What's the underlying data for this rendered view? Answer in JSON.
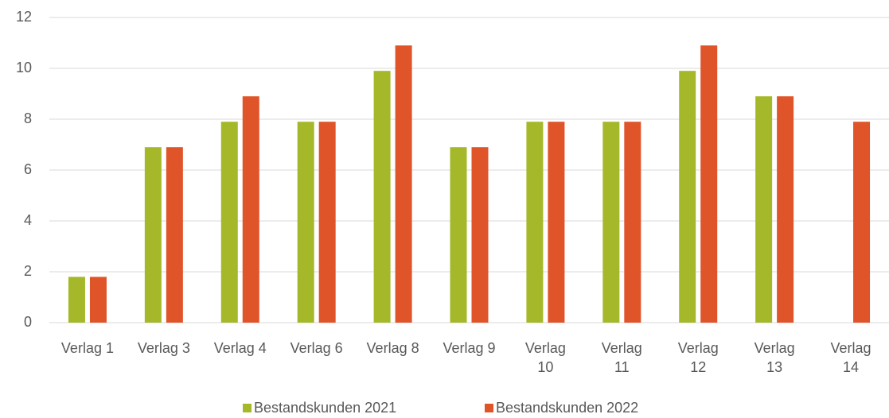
{
  "chart_data": {
    "type": "bar",
    "categories": [
      "Verlag 1",
      "Verlag 3",
      "Verlag 4",
      "Verlag 6",
      "Verlag 8",
      "Verlag 9",
      "Verlag 10",
      "Verlag 11",
      "Verlag 12",
      "Verlag 13",
      "Verlag 14"
    ],
    "series": [
      {
        "name": "Bestandskunden 2021",
        "color": "#a5b82a",
        "values": [
          1.8,
          6.9,
          7.9,
          7.9,
          9.9,
          6.9,
          7.9,
          7.9,
          9.9,
          8.9,
          null
        ]
      },
      {
        "name": "Bestandskunden 2022",
        "color": "#e0542a",
        "values": [
          1.8,
          6.9,
          8.9,
          7.9,
          10.9,
          6.9,
          7.9,
          7.9,
          10.9,
          8.9,
          7.9
        ]
      }
    ],
    "ylim": [
      0,
      12
    ],
    "yticks": [
      0,
      2,
      4,
      6,
      8,
      10,
      12
    ],
    "grid": true,
    "legend": "bottom"
  }
}
